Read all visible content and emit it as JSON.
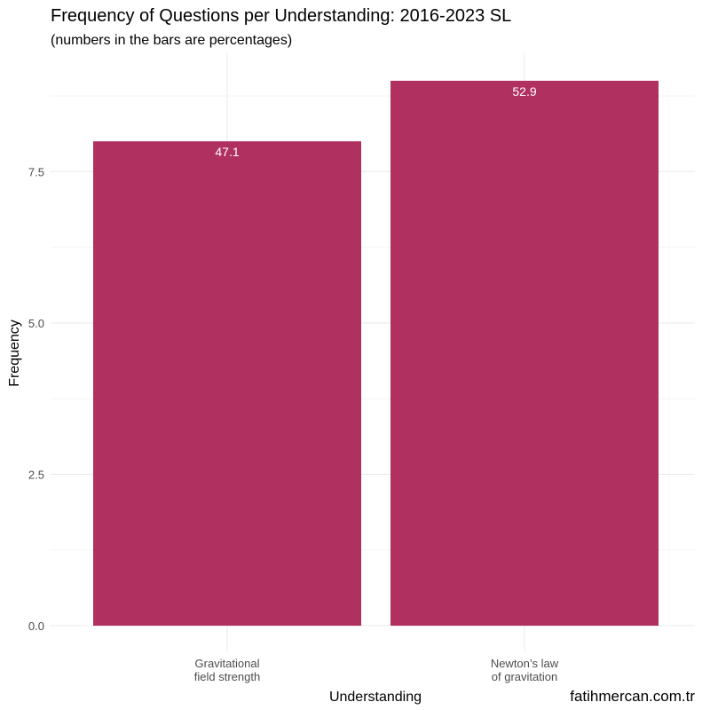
{
  "chart_data": {
    "type": "bar",
    "title": "Frequency of Questions per Understanding: 2016-2023 SL",
    "subtitle": "(numbers in the bars are percentages)",
    "xlabel": "Understanding",
    "ylabel": "Frequency",
    "categories": [
      [
        "Gravitational",
        "field strength"
      ],
      [
        "Newton’s law",
        "of gravitation"
      ]
    ],
    "values": [
      8,
      9
    ],
    "data_labels": [
      "47.1",
      "52.9"
    ],
    "y_ticks": [
      0,
      2.5,
      5,
      7.5
    ],
    "y_tick_labels": [
      "0.0",
      "2.5",
      "5.0",
      "7.5"
    ],
    "ylim": [
      0,
      9
    ],
    "grid": true,
    "bar_color": "#B03060",
    "caption": "fatihmercan.com.tr"
  }
}
